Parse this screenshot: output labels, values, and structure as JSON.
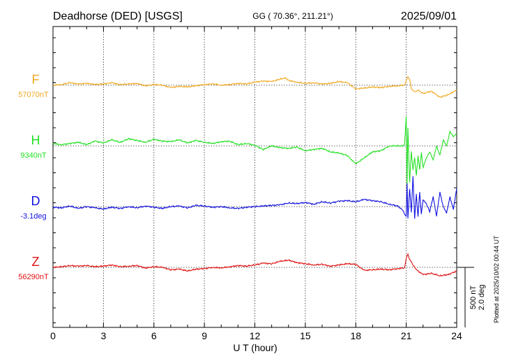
{
  "chart_data": {
    "type": "line",
    "title": "Deadhorse (DED)  [USGS]",
    "subtitle": "GG ( 70.36°, 211.21°)",
    "date": "2025/09/01",
    "xlabel": "U T (hour)",
    "xlim": [
      0,
      24
    ],
    "xticks": [
      0,
      3,
      6,
      9,
      12,
      15,
      18,
      21,
      24
    ],
    "xtick_labels": [
      "0",
      "3",
      "6",
      "9",
      "12",
      "15",
      "18",
      "21",
      "24"
    ],
    "grid": true,
    "scale_bar": {
      "label_nt": "500 nT",
      "label_deg": "2.0 deg"
    },
    "footer": "Plotted at 2025/10/02 00:44 UT",
    "series": [
      {
        "name": "F",
        "baseline_label": "57070nT",
        "color": "#f0a820",
        "x": [
          0,
          0.5,
          1,
          1.5,
          2,
          2.5,
          3,
          3.5,
          4,
          4.5,
          5,
          5.5,
          6,
          6.5,
          7,
          7.5,
          8,
          8.5,
          9,
          9.5,
          10,
          10.5,
          11,
          11.5,
          12,
          12.5,
          13,
          13.5,
          13.8,
          14,
          14.5,
          15,
          15.5,
          16,
          16.5,
          17,
          17.5,
          18,
          18.5,
          19,
          19.5,
          20,
          20.5,
          20.9,
          21,
          21.1,
          21.2,
          21.3,
          21.5,
          21.7,
          22,
          22.5,
          23,
          23.5,
          24
        ],
        "values": [
          0,
          5,
          20,
          10,
          15,
          5,
          10,
          20,
          5,
          10,
          15,
          -5,
          5,
          0,
          -20,
          -10,
          -15,
          -5,
          5,
          10,
          0,
          5,
          15,
          10,
          25,
          35,
          30,
          50,
          60,
          40,
          25,
          15,
          20,
          10,
          15,
          30,
          20,
          -30,
          -25,
          -15,
          -20,
          -10,
          -5,
          0,
          40,
          70,
          50,
          -30,
          -60,
          -40,
          -70,
          -50,
          -100,
          -80,
          -40
        ]
      },
      {
        "name": "H",
        "baseline_label": "9340nT",
        "color": "#22e022",
        "x": [
          0,
          0.5,
          1,
          1.5,
          2,
          2.5,
          3,
          3.5,
          4,
          4.5,
          5,
          5.5,
          6,
          6.5,
          7,
          7.5,
          8,
          8.5,
          9,
          9.5,
          10,
          10.5,
          11,
          11.5,
          12,
          12.5,
          13,
          13.5,
          14,
          14.5,
          15,
          15.5,
          16,
          16.5,
          17,
          17.5,
          18,
          18.5,
          19,
          19.5,
          20,
          20.5,
          20.8,
          20.9,
          21,
          21.05,
          21.1,
          21.2,
          21.3,
          21.4,
          21.5,
          21.6,
          21.7,
          21.8,
          21.9,
          22,
          22.2,
          22.4,
          22.6,
          22.8,
          23,
          23.2,
          23.4,
          23.6,
          23.8,
          24
        ],
        "values": [
          20,
          10,
          20,
          30,
          10,
          40,
          25,
          50,
          30,
          60,
          45,
          30,
          55,
          40,
          35,
          50,
          25,
          45,
          30,
          20,
          35,
          40,
          10,
          20,
          5,
          -30,
          0,
          -15,
          -20,
          -10,
          -40,
          -30,
          -20,
          -50,
          -60,
          -80,
          -150,
          -100,
          -50,
          -40,
          0,
          0,
          0,
          10,
          250,
          -350,
          150,
          -300,
          -50,
          -200,
          -100,
          -250,
          -80,
          -200,
          -50,
          -180,
          -100,
          -50,
          -120,
          0,
          -80,
          50,
          0,
          120,
          80,
          100
        ]
      },
      {
        "name": "D",
        "baseline_label": "-3.1deg",
        "color": "#1010e0",
        "x": [
          0,
          0.5,
          1,
          1.5,
          2,
          2.5,
          3,
          3.5,
          4,
          4.5,
          5,
          5.5,
          6,
          6.5,
          7,
          7.5,
          8,
          8.5,
          9,
          9.5,
          10,
          10.5,
          11,
          11.5,
          12,
          12.5,
          13,
          13.5,
          14,
          14.5,
          15,
          15.5,
          16,
          16.5,
          17,
          17.5,
          18,
          18.5,
          19,
          19.5,
          20,
          20.5,
          20.8,
          20.9,
          21,
          21.05,
          21.1,
          21.2,
          21.3,
          21.4,
          21.5,
          21.6,
          21.7,
          21.8,
          21.9,
          22,
          22.2,
          22.4,
          22.6,
          22.8,
          23,
          23.2,
          23.4,
          23.6,
          23.8,
          24
        ],
        "values": [
          -5,
          -10,
          5,
          -15,
          0,
          -10,
          -20,
          -5,
          -15,
          0,
          -10,
          5,
          -5,
          -15,
          0,
          5,
          -10,
          10,
          5,
          -5,
          0,
          -10,
          -15,
          -5,
          0,
          5,
          10,
          15,
          30,
          25,
          35,
          20,
          40,
          30,
          45,
          50,
          40,
          60,
          50,
          40,
          20,
          5,
          -30,
          -60,
          -80,
          200,
          -100,
          150,
          -50,
          250,
          -100,
          100,
          -80,
          120,
          -60,
          60,
          20,
          -40,
          80,
          -80,
          120,
          0,
          -50,
          80,
          -20,
          150
        ]
      },
      {
        "name": "Z",
        "baseline_label": "56290nT",
        "color": "#e01010",
        "x": [
          0,
          0.5,
          1,
          1.5,
          2,
          2.5,
          3,
          3.5,
          4,
          4.5,
          5,
          5.5,
          6,
          6.5,
          7,
          7.5,
          8,
          8.5,
          9,
          9.5,
          10,
          10.5,
          11,
          11.5,
          12,
          12.5,
          13,
          13.5,
          14,
          14.5,
          15,
          15.5,
          16,
          16.5,
          17,
          17.5,
          18,
          18.5,
          19,
          19.5,
          20,
          20.5,
          20.9,
          21,
          21.1,
          21.2,
          21.4,
          21.6,
          22,
          22.5,
          23,
          23.5,
          24
        ],
        "values": [
          0,
          5,
          15,
          10,
          15,
          5,
          10,
          20,
          5,
          10,
          15,
          -5,
          5,
          0,
          -20,
          -15,
          -30,
          -15,
          -10,
          0,
          -5,
          5,
          15,
          10,
          20,
          35,
          30,
          50,
          60,
          40,
          30,
          20,
          25,
          10,
          20,
          30,
          25,
          -25,
          -20,
          -15,
          -20,
          -10,
          -5,
          80,
          110,
          70,
          20,
          -20,
          -60,
          -50,
          -70,
          -60,
          -30
        ]
      }
    ]
  }
}
